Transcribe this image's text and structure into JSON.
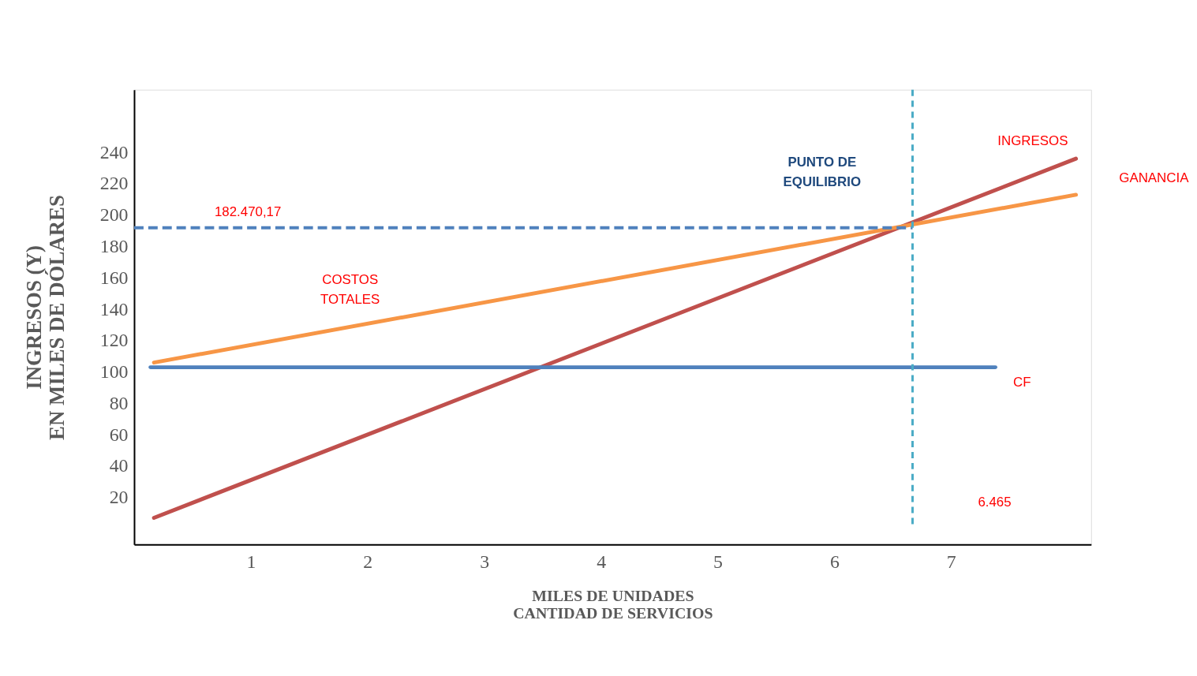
{
  "chart_data": {
    "type": "line",
    "xlabel": "MILES DE UNIDADES\nCANTIDAD DE SERVICIOS",
    "ylabel": "INGRESOS (Y)\nEN MILES DE DÓLARES",
    "x": [
      0.17,
      8.07
    ],
    "series": [
      {
        "name": "INGRESOS",
        "color": "#c0504d",
        "values": [
          7,
          236
        ]
      },
      {
        "name": "COSTOS\nTOTALES",
        "color": "#f79646",
        "values": [
          106,
          213
        ]
      },
      {
        "name": "CF",
        "color": "#4f81bd",
        "x": [
          0.14,
          7.38
        ],
        "values": [
          103,
          103
        ]
      }
    ],
    "xlim": [
      0,
      8.2
    ],
    "xticks": [
      1,
      2,
      3,
      4,
      5,
      6,
      7
    ],
    "ylim": [
      -10,
      280
    ],
    "yticks": [
      20,
      40,
      60,
      80,
      100,
      120,
      140,
      160,
      180,
      200,
      220,
      240
    ],
    "ref_lines": [
      {
        "axis": "y",
        "value": 192,
        "color": "#4f81bd",
        "line_style": "dashed"
      },
      {
        "axis": "x",
        "value": 6.67,
        "color": "#4bacc6",
        "line_style": "dashed"
      }
    ],
    "annotations": [
      "PUNTO DE\nEQUILIBRIO",
      "GANANCIA",
      "182.470,17",
      "6.465"
    ],
    "grid": false,
    "marker": "none",
    "line_style": "solid"
  }
}
